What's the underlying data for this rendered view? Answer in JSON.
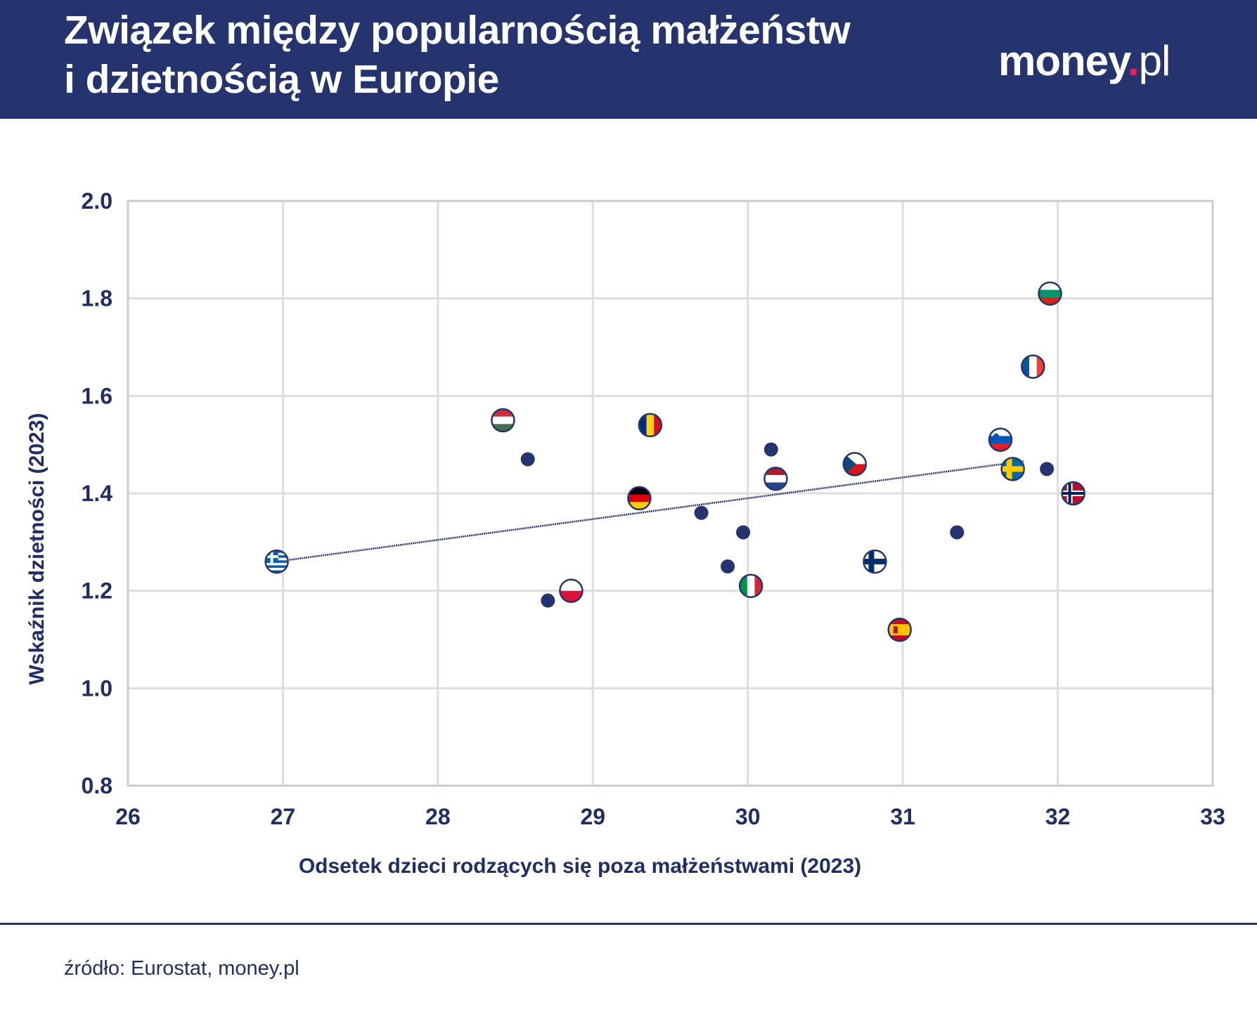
{
  "header": {
    "title_line1": "Związek między popularnością małżeństw",
    "title_line2": "i dzietnością w Europie",
    "logo": "money.pl"
  },
  "footer": {
    "source": "źródło: Eurostat, money.pl"
  },
  "colors": {
    "header_bg": "#25346f",
    "marker": "#25346f",
    "grid": "#dddddd",
    "logo_dot": "#e0245e"
  },
  "chart_data": {
    "type": "scatter",
    "xlabel": "Odsetek dzieci rodzących się poza małżeństwami (2023)",
    "ylabel": "Wskaźnik dzietności (2023)",
    "xlim": [
      26,
      33
    ],
    "ylim": [
      0.8,
      2.0
    ],
    "xticks": [
      "26",
      "27",
      "28",
      "29",
      "30",
      "31",
      "32",
      "33"
    ],
    "yticks": [
      "0.8",
      "1.0",
      "1.2",
      "1.4",
      "1.6",
      "1.8",
      "2.0"
    ],
    "grid": true,
    "points": [
      {
        "flag": "GR",
        "x": 26.96,
        "y": 1.26
      },
      {
        "flag": "HU",
        "x": 28.42,
        "y": 1.55
      },
      {
        "flag": "",
        "x": 28.58,
        "y": 1.47
      },
      {
        "flag": "",
        "x": 28.71,
        "y": 1.18
      },
      {
        "flag": "PL",
        "x": 28.86,
        "y": 1.2
      },
      {
        "flag": "DE",
        "x": 29.3,
        "y": 1.39
      },
      {
        "flag": "RO",
        "x": 29.37,
        "y": 1.54
      },
      {
        "flag": "",
        "x": 29.7,
        "y": 1.36
      },
      {
        "flag": "",
        "x": 29.87,
        "y": 1.25
      },
      {
        "flag": "",
        "x": 29.97,
        "y": 1.32
      },
      {
        "flag": "IT",
        "x": 30.02,
        "y": 1.21
      },
      {
        "flag": "",
        "x": 30.15,
        "y": 1.49
      },
      {
        "flag": "NL",
        "x": 30.18,
        "y": 1.43
      },
      {
        "flag": "CZ",
        "x": 30.69,
        "y": 1.46
      },
      {
        "flag": "FI",
        "x": 30.82,
        "y": 1.26
      },
      {
        "flag": "ES",
        "x": 30.98,
        "y": 1.12
      },
      {
        "flag": "",
        "x": 31.35,
        "y": 1.32
      },
      {
        "flag": "SI",
        "x": 31.63,
        "y": 1.51
      },
      {
        "flag": "SE",
        "x": 31.71,
        "y": 1.45
      },
      {
        "flag": "FR",
        "x": 31.84,
        "y": 1.66
      },
      {
        "flag": "",
        "x": 31.93,
        "y": 1.45
      },
      {
        "flag": "BG",
        "x": 31.95,
        "y": 1.81
      },
      {
        "flag": "NO",
        "x": 32.1,
        "y": 1.4
      }
    ],
    "trendline": {
      "x": [
        26.96,
        31.78
      ],
      "y": [
        1.26,
        1.466
      ]
    }
  }
}
